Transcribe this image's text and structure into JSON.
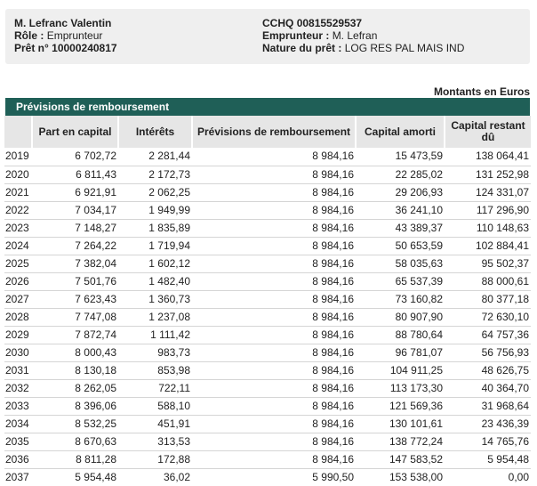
{
  "header": {
    "holder_name": "M. Lefranc Valentin",
    "role_label": "Rôle :",
    "role_value": "Emprunteur",
    "loan_label": "Prêt n°",
    "loan_number": "10000240817",
    "account_label": "CCHQ",
    "account_number": "00815529537",
    "borrower_label": "Emprunteur :",
    "borrower_value": "M. Lefran",
    "nature_label": "Nature du prêt :",
    "nature_value": "LOG RES PAL MAIS IND"
  },
  "currency_note": "Montants en Euros",
  "section_title": "Prévisions de remboursement",
  "table": {
    "columns": [
      "",
      "Part en capital",
      "Intérêts",
      "Prévisions de remboursement",
      "Capital amorti",
      "Capital restant dû"
    ],
    "rows": [
      [
        "2019",
        "6 702,72",
        "2 281,44",
        "8 984,16",
        "15 473,59",
        "138 064,41"
      ],
      [
        "2020",
        "6 811,43",
        "2 172,73",
        "8 984,16",
        "22 285,02",
        "131 252,98"
      ],
      [
        "2021",
        "6 921,91",
        "2 062,25",
        "8 984,16",
        "29 206,93",
        "124 331,07"
      ],
      [
        "2022",
        "7 034,17",
        "1 949,99",
        "8 984,16",
        "36 241,10",
        "117 296,90"
      ],
      [
        "2023",
        "7 148,27",
        "1 835,89",
        "8 984,16",
        "43 389,37",
        "110 148,63"
      ],
      [
        "2024",
        "7 264,22",
        "1 719,94",
        "8 984,16",
        "50 653,59",
        "102 884,41"
      ],
      [
        "2025",
        "7 382,04",
        "1 602,12",
        "8 984,16",
        "58 035,63",
        "95 502,37"
      ],
      [
        "2026",
        "7 501,76",
        "1 482,40",
        "8 984,16",
        "65 537,39",
        "88 000,61"
      ],
      [
        "2027",
        "7 623,43",
        "1 360,73",
        "8 984,16",
        "73 160,82",
        "80 377,18"
      ],
      [
        "2028",
        "7 747,08",
        "1 237,08",
        "8 984,16",
        "80 907,90",
        "72 630,10"
      ],
      [
        "2029",
        "7 872,74",
        "1 111,42",
        "8 984,16",
        "88 780,64",
        "64 757,36"
      ],
      [
        "2030",
        "8 000,43",
        "983,73",
        "8 984,16",
        "96 781,07",
        "56 756,93"
      ],
      [
        "2031",
        "8 130,18",
        "853,98",
        "8 984,16",
        "104 911,25",
        "48 626,75"
      ],
      [
        "2032",
        "8 262,05",
        "722,11",
        "8 984,16",
        "113 173,30",
        "40 364,70"
      ],
      [
        "2033",
        "8 396,06",
        "588,10",
        "8 984,16",
        "121 569,36",
        "31 968,64"
      ],
      [
        "2034",
        "8 532,25",
        "451,91",
        "8 984,16",
        "130 101,61",
        "23 436,39"
      ],
      [
        "2035",
        "8 670,63",
        "313,53",
        "8 984,16",
        "138 772,24",
        "14 765,76"
      ],
      [
        "2036",
        "8 811,28",
        "172,88",
        "8 984,16",
        "147 583,52",
        "5 954,48"
      ],
      [
        "2037",
        "5 954,48",
        "36,02",
        "5 990,50",
        "153 538,00",
        "0,00"
      ]
    ]
  }
}
